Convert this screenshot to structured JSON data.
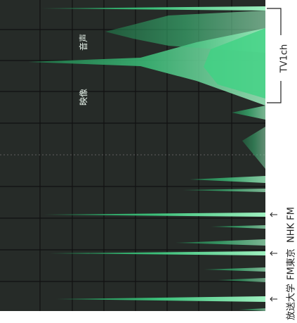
{
  "screen_labels": {
    "video": "映像",
    "audio": "音声"
  },
  "annotations": {
    "tv_channel": "TV1ch",
    "stations": [
      "放送大学",
      "FM東京",
      "NHK FM"
    ]
  }
}
